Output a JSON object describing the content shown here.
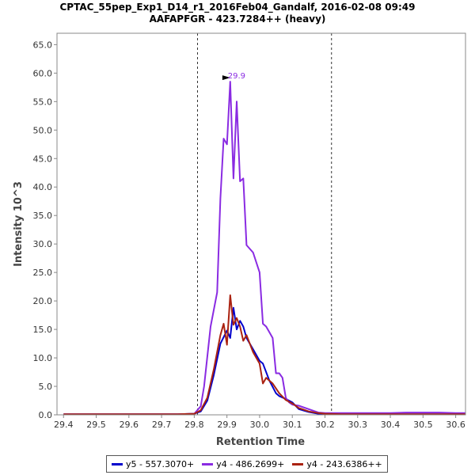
{
  "chart_data": {
    "type": "line",
    "title": "CPTAC_55pep_Exp1_D14_r1_2016Feb04_Gandalf, 2016-02-08 09:49",
    "subtitle": "AAFAPFGR - 423.7284++ (heavy)",
    "xlabel": "Retention Time",
    "ylabel": "Intensity 10^3",
    "xlim": [
      29.38,
      30.63
    ],
    "ylim": [
      0,
      67
    ],
    "xticks": [
      "29.4",
      "29.5",
      "29.6",
      "29.7",
      "29.8",
      "29.9",
      "30.0",
      "30.1",
      "30.2",
      "30.3",
      "30.4",
      "30.5",
      "30.6"
    ],
    "yticks": [
      "0.0",
      "5.0",
      "10.0",
      "15.0",
      "20.0",
      "25.0",
      "30.0",
      "35.0",
      "40.0",
      "45.0",
      "50.0",
      "55.0",
      "60.0",
      "65.0"
    ],
    "boundaries": [
      29.81,
      30.22
    ],
    "peak_annotation": {
      "x": 29.92,
      "y": 58.5,
      "label": "29.9",
      "color": "#8a2be2"
    },
    "series": [
      {
        "name": "y5 - 557.3070+",
        "color": "#0000cc",
        "x": [
          29.4,
          29.45,
          29.5,
          29.55,
          29.6,
          29.65,
          29.7,
          29.75,
          29.8,
          29.82,
          29.84,
          29.86,
          29.88,
          29.9,
          29.91,
          29.92,
          29.93,
          29.94,
          29.95,
          29.96,
          29.98,
          30.0,
          30.01,
          30.03,
          30.05,
          30.06,
          30.08,
          30.1,
          30.12,
          30.15,
          30.18,
          30.2,
          30.25,
          30.3,
          30.4,
          30.5,
          30.6,
          30.63
        ],
        "y": [
          0.1,
          0.1,
          0.1,
          0.1,
          0.1,
          0.1,
          0.1,
          0.1,
          0.2,
          0.6,
          2.5,
          7.0,
          12.5,
          14.8,
          13.5,
          18.8,
          15.0,
          16.5,
          15.5,
          13.5,
          11.5,
          9.5,
          9.0,
          6.0,
          3.8,
          3.3,
          2.8,
          2.2,
          1.0,
          0.5,
          0.2,
          0.2,
          0.1,
          0.1,
          0.1,
          0.1,
          0.1,
          0.1
        ]
      },
      {
        "name": "y4 - 486.2699+",
        "color": "#8a2be2",
        "x": [
          29.4,
          29.45,
          29.5,
          29.55,
          29.6,
          29.65,
          29.7,
          29.75,
          29.8,
          29.82,
          29.83,
          29.85,
          29.87,
          29.88,
          29.89,
          29.9,
          29.91,
          29.92,
          29.93,
          29.94,
          29.95,
          29.96,
          29.98,
          30.0,
          30.01,
          30.02,
          30.04,
          30.05,
          30.06,
          30.07,
          30.08,
          30.09,
          30.1,
          30.12,
          30.15,
          30.18,
          30.2,
          30.25,
          30.3,
          30.35,
          30.4,
          30.45,
          30.5,
          30.55,
          30.6,
          30.63
        ],
        "y": [
          0.1,
          0.1,
          0.1,
          0.1,
          0.1,
          0.1,
          0.1,
          0.1,
          0.2,
          1.5,
          5.0,
          15.5,
          21.5,
          38.0,
          48.5,
          47.5,
          58.5,
          41.5,
          55.0,
          41.0,
          41.5,
          29.8,
          28.5,
          25.0,
          16.0,
          15.5,
          13.5,
          7.3,
          7.3,
          6.5,
          3.0,
          2.2,
          1.8,
          1.6,
          1.0,
          0.4,
          0.3,
          0.3,
          0.3,
          0.3,
          0.3,
          0.4,
          0.4,
          0.4,
          0.3,
          0.3
        ]
      },
      {
        "name": "y4 - 243.6386++",
        "color": "#aa2211",
        "x": [
          29.4,
          29.45,
          29.5,
          29.55,
          29.6,
          29.65,
          29.7,
          29.75,
          29.8,
          29.82,
          29.84,
          29.86,
          29.88,
          29.89,
          29.9,
          29.91,
          29.92,
          29.93,
          29.94,
          29.95,
          29.96,
          29.98,
          30.0,
          30.01,
          30.02,
          30.04,
          30.06,
          30.08,
          30.1,
          30.12,
          30.15,
          30.18,
          30.2,
          30.25,
          30.3,
          30.4,
          30.5,
          30.6,
          30.63
        ],
        "y": [
          0.1,
          0.1,
          0.1,
          0.1,
          0.1,
          0.1,
          0.1,
          0.1,
          0.2,
          0.8,
          3.0,
          8.0,
          14.0,
          16.0,
          12.3,
          21.0,
          15.8,
          17.0,
          15.5,
          13.0,
          14.0,
          11.0,
          9.0,
          5.5,
          6.5,
          5.5,
          3.8,
          2.6,
          2.0,
          1.2,
          0.6,
          0.3,
          0.2,
          0.1,
          0.1,
          0.1,
          0.1,
          0.1,
          0.1
        ]
      }
    ],
    "legend_position": "bottom"
  }
}
